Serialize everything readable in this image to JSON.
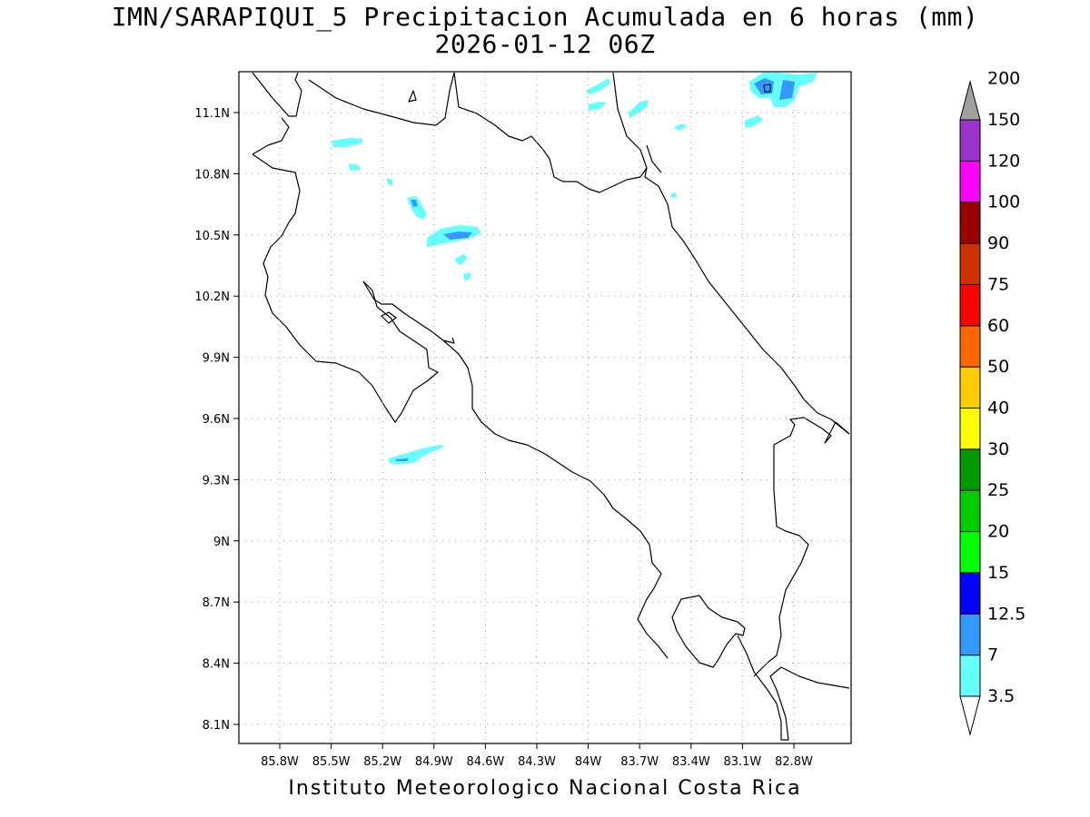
{
  "title": {
    "line1": "IMN/SARAPIQUI_5 Precipitacion Acumulada en 6 horas (mm)",
    "line2": "2026-01-12 06Z"
  },
  "footer": "Instituto Meteorologico Nacional Costa Rica",
  "map": {
    "lon_range": [
      -86.0,
      -82.4
    ],
    "lat_range": [
      8.0,
      11.2
    ],
    "grid": true,
    "lon_ticks": [
      "85.8W",
      "85.5W",
      "85.2W",
      "84.9W",
      "84.6W",
      "84.3W",
      "84W",
      "83.7W",
      "83.4W",
      "83.1W",
      "82.8W"
    ],
    "lat_ticks": [
      "11.1N",
      "10.8N",
      "10.5N",
      "10.2N",
      "9.9N",
      "9.6N",
      "9.3N",
      "9N",
      "8.7N",
      "8.4N",
      "8.1N"
    ]
  },
  "colorbar": {
    "labels": [
      "3.5",
      "7",
      "12.5",
      "15",
      "20",
      "25",
      "30",
      "40",
      "50",
      "60",
      "75",
      "90",
      "100",
      "120",
      "150",
      "200"
    ],
    "colors": [
      "#66ffff",
      "#3399ff",
      "#0000ff",
      "#00ff00",
      "#00cc00",
      "#009900",
      "#ffff00",
      "#ffcc00",
      "#ff6600",
      "#ff0000",
      "#cc3300",
      "#990000",
      "#ff00ff",
      "#9933cc",
      "#f5f5f5",
      "#a0a0a0"
    ]
  },
  "precip_colors": {
    "light": "#66ffff",
    "moderate": "#3399ff"
  }
}
